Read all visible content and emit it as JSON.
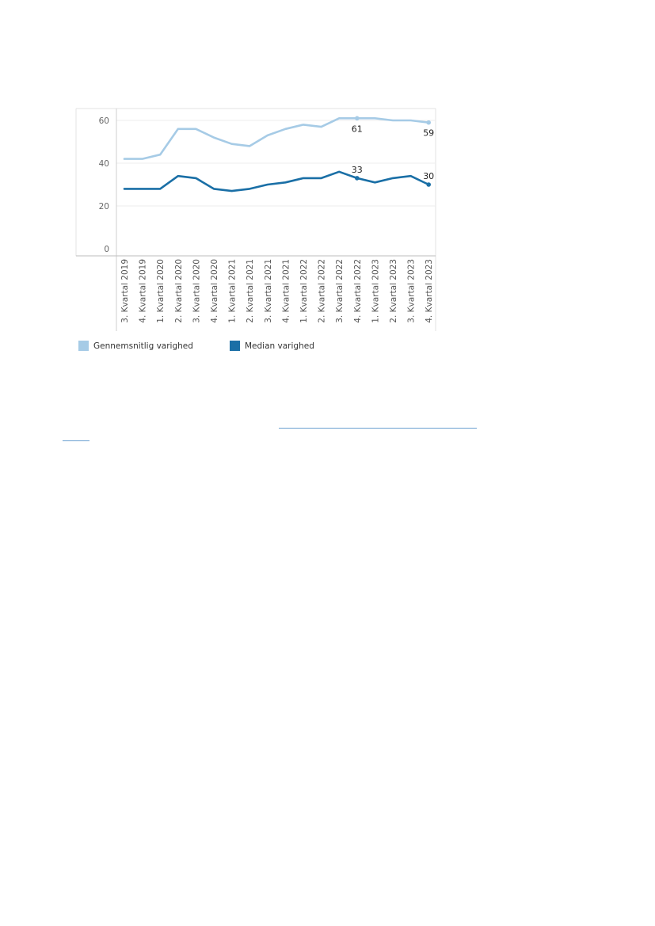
{
  "chart_data": {
    "type": "line",
    "title": "",
    "xlabel": "",
    "ylabel": "",
    "ylim": [
      0,
      60
    ],
    "yticks": [
      0,
      20,
      40,
      60
    ],
    "grid": true,
    "legend_position": "bottom-left",
    "categories": [
      "3. Kvartal 2019",
      "4. Kvartal 2019",
      "1. Kvartal 2020",
      "2. Kvartal 2020",
      "3. Kvartal 2020",
      "4. Kvartal 2020",
      "1. Kvartal 2021",
      "2. Kvartal 2021",
      "3. Kvartal 2021",
      "4. Kvartal 2021",
      "1. Kvartal 2022",
      "2. Kvartal 2022",
      "3. Kvartal 2022",
      "4. Kvartal 2022",
      "1. Kvartal 2023",
      "2. Kvartal 2023",
      "3. Kvartal 2023",
      "4. Kvartal 2023"
    ],
    "series": [
      {
        "name": "Gennemsnitlig varighed",
        "color": "#a6cbe6",
        "values": [
          42,
          42,
          44,
          56,
          56,
          52,
          49,
          48,
          53,
          56,
          58,
          57,
          61,
          61,
          61,
          60,
          60,
          59
        ],
        "labels": [
          {
            "index": 13,
            "text": "61"
          },
          {
            "index": 17,
            "text": "59"
          }
        ]
      },
      {
        "name": "Median varighed",
        "color": "#1a6fa6",
        "values": [
          28,
          28,
          28,
          34,
          33,
          28,
          27,
          28,
          30,
          31,
          33,
          33,
          36,
          33,
          31,
          33,
          34,
          30
        ],
        "labels": [
          {
            "index": 13,
            "text": "33"
          },
          {
            "index": 17,
            "text": "30"
          }
        ]
      }
    ]
  },
  "footer": {
    "link_color": "#6a9fd0"
  }
}
